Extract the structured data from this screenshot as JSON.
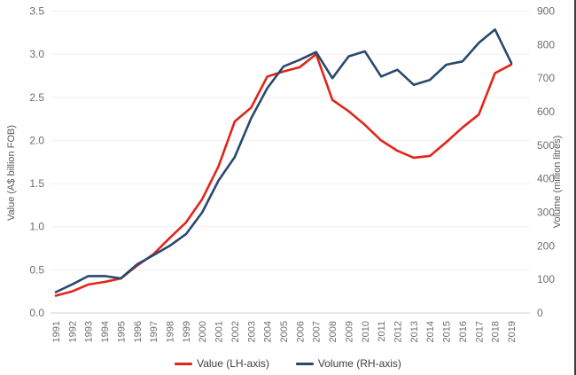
{
  "chart_data": {
    "type": "line",
    "x": [
      "1991",
      "1992",
      "1993",
      "1994",
      "1995",
      "1996",
      "1997",
      "1998",
      "1999",
      "2000",
      "2001",
      "2002",
      "2003",
      "2004",
      "2005",
      "2006",
      "2007",
      "2008",
      "2009",
      "2010",
      "2011",
      "2012",
      "2013",
      "2014",
      "2015",
      "2016",
      "2017",
      "2018",
      "2019"
    ],
    "series": [
      {
        "name": "Value (LH-axis)",
        "axis": "left",
        "color": "#e1251b",
        "values": [
          0.2,
          0.25,
          0.33,
          0.36,
          0.4,
          0.55,
          0.68,
          0.87,
          1.05,
          1.32,
          1.7,
          2.22,
          2.38,
          2.74,
          2.8,
          2.85,
          3.0,
          2.47,
          2.34,
          2.18,
          2.0,
          1.88,
          1.8,
          1.82,
          1.98,
          2.15,
          2.3,
          2.78,
          2.88
        ]
      },
      {
        "name": "Volume (RH-axis)",
        "axis": "right",
        "color": "#28496e",
        "values": [
          62,
          85,
          110,
          110,
          103,
          145,
          172,
          200,
          235,
          300,
          395,
          465,
          580,
          670,
          735,
          755,
          778,
          700,
          765,
          780,
          705,
          725,
          680,
          695,
          740,
          750,
          805,
          845,
          745
        ]
      }
    ],
    "left_axis": {
      "label": "Value (A$ billion FOB)",
      "min": 0,
      "max": 3.5,
      "step": 0.5,
      "tick_format": "one_decimal"
    },
    "right_axis": {
      "label": "Volume (million litres)",
      "min": 0,
      "max": 900,
      "step": 100,
      "tick_format": "integer"
    },
    "legend": [
      {
        "label": "Value (LH-axis)",
        "color": "#e1251b"
      },
      {
        "label": "Volume (RH-axis)",
        "color": "#28496e"
      }
    ],
    "grid": true,
    "legend_position": "bottom"
  },
  "style_colors": {
    "grid_line": "#efefef",
    "axis_line": "#d9d9d9",
    "tick_text": "#6e6e6e",
    "legend_text": "#404040"
  }
}
